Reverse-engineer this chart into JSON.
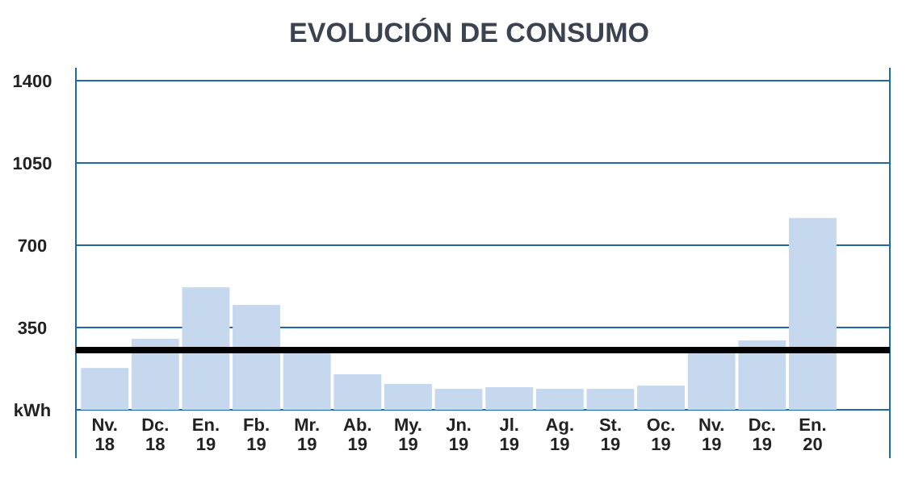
{
  "chart_data": {
    "type": "bar",
    "title": "EVOLUCIÓN DE CONSUMO",
    "ylabel": "kWh",
    "categories": [
      "Nv. 18",
      "Dc. 18",
      "En. 19",
      "Fb. 19",
      "Mr. 19",
      "Ab. 19",
      "My. 19",
      "Jn. 19",
      "Jl. 19",
      "Ag. 19",
      "St. 19",
      "Oc. 19",
      "Nv. 19",
      "Dc. 19",
      "En. 20"
    ],
    "values": [
      178,
      302,
      521,
      446,
      240,
      151,
      110,
      89,
      96,
      89,
      89,
      103,
      240,
      295,
      816
    ],
    "color": "#c6d8ee",
    "ylim": [
      0,
      1400
    ],
    "yticks": [
      350,
      700,
      1050,
      1400
    ],
    "grid": "y",
    "ref_lines": [
      {
        "axis": "y",
        "value": 254,
        "color": "#000000"
      }
    ]
  }
}
